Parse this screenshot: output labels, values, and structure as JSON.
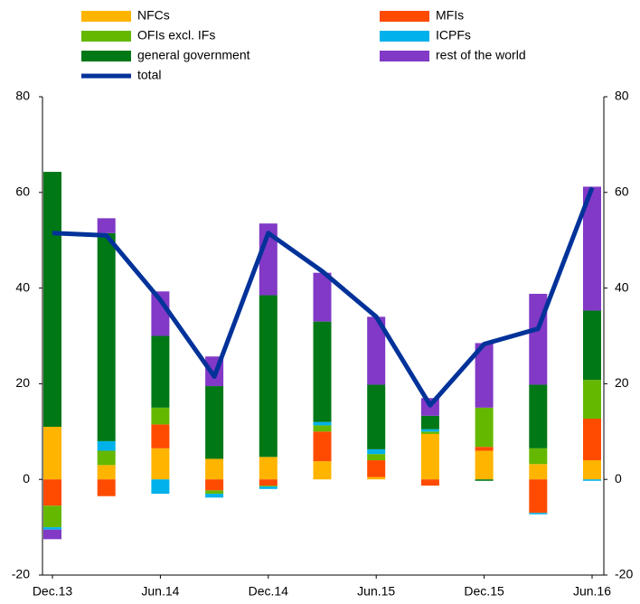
{
  "chart_data": {
    "type": "stacked-bar-line",
    "categories": [
      "Dec.13",
      null,
      "Jun.14",
      null,
      "Dec.14",
      null,
      "Jun.15",
      null,
      "Dec.15",
      null,
      "Jun.16"
    ],
    "series": [
      {
        "name": "NFCs",
        "color": "#ffb400",
        "values": [
          11,
          3,
          6.5,
          4.3,
          4.7,
          3.8,
          0.5,
          9.5,
          6,
          3.2,
          4
        ]
      },
      {
        "name": "MFIs",
        "color": "#ff4b00",
        "values": [
          -5.5,
          -3.5,
          5,
          -2.3,
          -1.3,
          6.2,
          3.5,
          -1.3,
          0.8,
          -7,
          8.7
        ]
      },
      {
        "name": "OFIs excl. IFs",
        "color": "#65b800",
        "values": [
          -4.5,
          3,
          3.5,
          -0.7,
          -0.2,
          1.3,
          1.3,
          0.5,
          8.2,
          3.3,
          8.1
        ]
      },
      {
        "name": "ICPFs",
        "color": "#00b1ea",
        "values": [
          -0.5,
          2,
          -3,
          -0.8,
          -0.5,
          0.7,
          1,
          0.5,
          0,
          -0.3,
          -0.3
        ]
      },
      {
        "name": "general government",
        "color": "#007816",
        "values": [
          53.3,
          43.5,
          15,
          15.2,
          33.8,
          21,
          13.5,
          2.8,
          -0.3,
          13.3,
          14.5
        ]
      },
      {
        "name": "rest of the world",
        "color": "#8139c6",
        "values": [
          -2,
          3.1,
          9.3,
          6.2,
          15,
          10.2,
          14.2,
          3.7,
          13.5,
          19,
          25.9
        ]
      },
      {
        "name": "total",
        "color": "#003299",
        "type": "line",
        "values": [
          51.5,
          51,
          37.5,
          21.5,
          51.5,
          43.5,
          34,
          15.5,
          28.3,
          31.5,
          61
        ]
      }
    ],
    "ylim": [
      -20,
      80
    ],
    "yticks": [
      -20,
      0,
      20,
      40,
      60,
      80
    ],
    "y2lim": [
      -20,
      80
    ],
    "y2ticks": [
      -20,
      0,
      20,
      40,
      60,
      80
    ]
  }
}
